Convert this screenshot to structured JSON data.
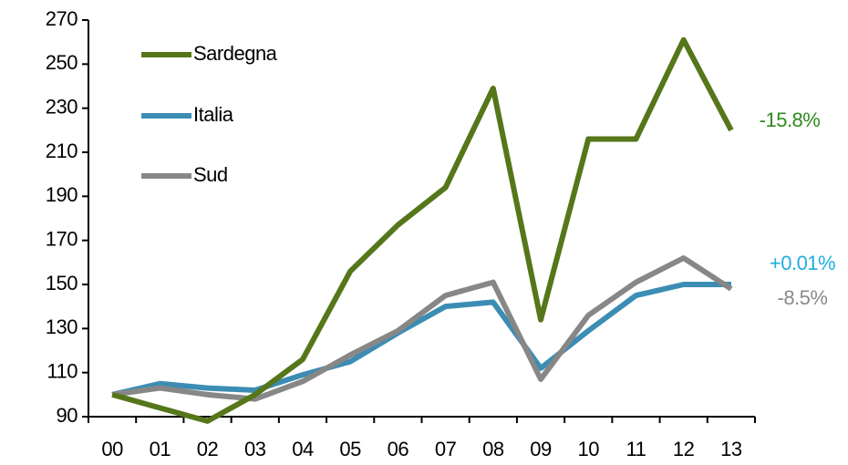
{
  "chart_data": {
    "type": "line",
    "categories": [
      "00",
      "01",
      "02",
      "03",
      "04",
      "05",
      "06",
      "07",
      "08",
      "09",
      "10",
      "11",
      "12",
      "13"
    ],
    "series": [
      {
        "name": "Sardegna",
        "color": "#56761a",
        "values": [
          100,
          94,
          88,
          100,
          116,
          156,
          177,
          194,
          239,
          134,
          216,
          216,
          261,
          220
        ]
      },
      {
        "name": "Italia",
        "color": "#3b8db4",
        "values": [
          100,
          105,
          103,
          102,
          109,
          115,
          128,
          140,
          142,
          112,
          129,
          145,
          150,
          150
        ]
      },
      {
        "name": "Sud",
        "color": "#878787",
        "values": [
          100,
          103,
          100,
          98,
          106,
          118,
          129,
          145,
          151,
          107,
          136,
          151,
          162,
          148
        ]
      }
    ],
    "ylim": [
      90,
      270
    ],
    "yticks": [
      90,
      110,
      130,
      150,
      170,
      190,
      210,
      230,
      250,
      270
    ],
    "legend": "upper left",
    "annotations": [
      {
        "text": "-15.8%",
        "color": "#2f8a1f"
      },
      {
        "text": "+0.01%",
        "color": "#1daee0"
      },
      {
        "text": "-8.5%",
        "color": "#8a8a8a"
      }
    ]
  }
}
